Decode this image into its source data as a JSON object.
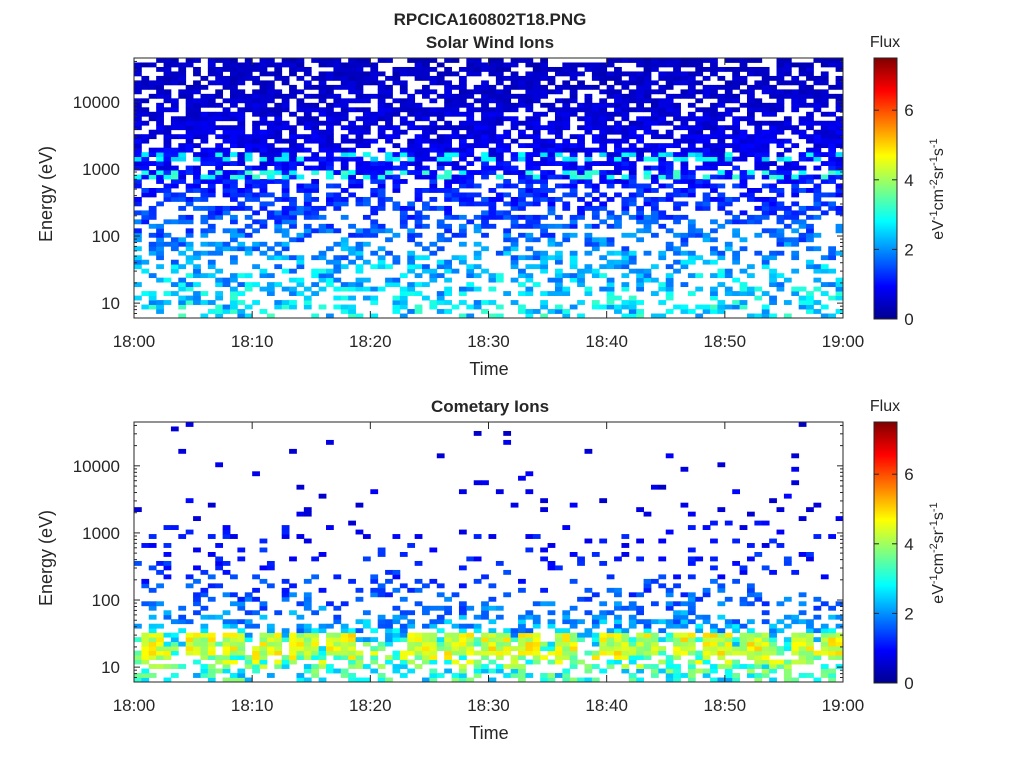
{
  "figure": {
    "title": "RPCICA160802T18.PNG"
  },
  "chart_data": [
    {
      "type": "heatmap",
      "title": "Solar Wind Ions",
      "xlabel": "Time",
      "ylabel": "Energy (eV)",
      "x_ticks": [
        "18:00",
        "18:10",
        "18:20",
        "18:30",
        "18:40",
        "18:50",
        "19:00"
      ],
      "xlim": [
        "18:00",
        "19:00"
      ],
      "y_scale": "log",
      "y_ticks": [
        10,
        100,
        1000,
        10000
      ],
      "y_tick_labels": [
        "10",
        "100",
        "1000",
        "10000"
      ],
      "ylim": [
        6,
        45000
      ],
      "colorbar": {
        "title": "Flux",
        "label": "eV-1cm-2sr-1s-1",
        "range": [
          0,
          7.5
        ],
        "ticks": [
          0,
          2,
          4,
          6
        ],
        "tick_labels": [
          "0",
          "2",
          "4",
          "6"
        ],
        "colormap": "jet"
      },
      "profile": {
        "energy_eV": [
          8,
          15,
          30,
          100,
          300,
          800,
          2000,
          10000,
          40000
        ],
        "fill_fraction": [
          0.35,
          0.45,
          0.4,
          0.35,
          0.5,
          0.65,
          0.7,
          0.7,
          0.65
        ],
        "typical_flux": [
          2.6,
          2.4,
          2.3,
          1.7,
          1.3,
          1.0,
          0.8,
          0.6,
          0.5
        ]
      },
      "bands": [
        {
          "energy_eV": 800,
          "flux": 3.0
        },
        {
          "energy_eV": 1600,
          "flux": 2.7
        }
      ],
      "grid": false
    },
    {
      "type": "heatmap",
      "title": "Cometary Ions",
      "xlabel": "Time",
      "ylabel": "Energy (eV)",
      "x_ticks": [
        "18:00",
        "18:10",
        "18:20",
        "18:30",
        "18:40",
        "18:50",
        "19:00"
      ],
      "xlim": [
        "18:00",
        "19:00"
      ],
      "y_scale": "log",
      "y_ticks": [
        10,
        100,
        1000,
        10000
      ],
      "y_tick_labels": [
        "10",
        "100",
        "1000",
        "10000"
      ],
      "ylim": [
        6,
        45000
      ],
      "colorbar": {
        "title": "Flux",
        "label": "eV-1cm-2sr-1s-1",
        "range": [
          0,
          7.5
        ],
        "ticks": [
          0,
          2,
          4,
          6
        ],
        "tick_labels": [
          "0",
          "2",
          "4",
          "6"
        ],
        "colormap": "jet"
      },
      "profile": {
        "energy_eV": [
          8,
          15,
          30,
          100,
          300,
          800,
          2000,
          10000,
          40000
        ],
        "fill_fraction": [
          0.5,
          0.6,
          0.5,
          0.28,
          0.12,
          0.1,
          0.05,
          0.02,
          0.01
        ],
        "typical_flux": [
          3.0,
          4.0,
          2.3,
          1.6,
          1.2,
          1.0,
          0.8,
          0.7,
          0.6
        ]
      },
      "bursts": {
        "times": [
          "18:01",
          "18:05",
          "18:08",
          "18:11",
          "18:14",
          "18:17",
          "18:24",
          "18:27",
          "18:30",
          "18:33",
          "18:36",
          "18:40",
          "18:43",
          "18:46",
          "18:49",
          "18:52",
          "18:56",
          "18:59"
        ],
        "energy_range_eV": [
          14,
          35
        ],
        "flux": 4.4
      },
      "grid": false
    }
  ]
}
